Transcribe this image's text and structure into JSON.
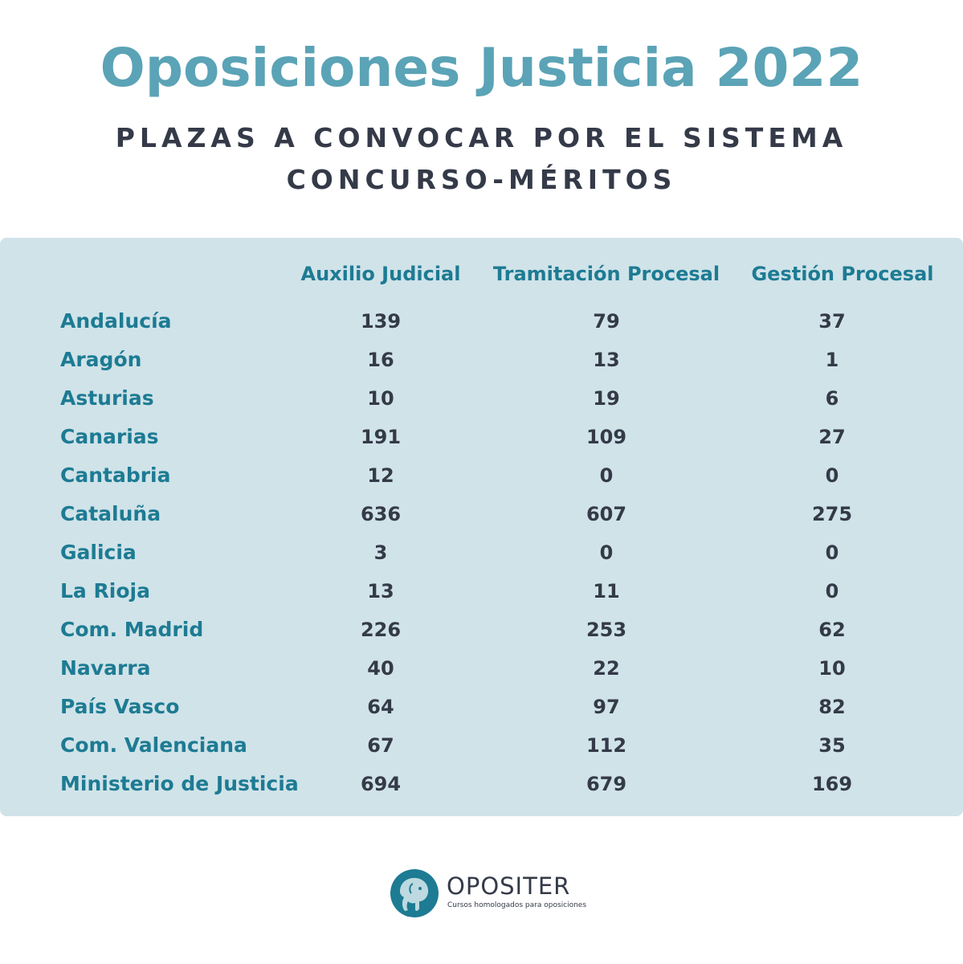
{
  "header": {
    "title": "Oposiciones Justicia 2022",
    "subtitle_line1": "PLAZAS A CONVOCAR POR EL SISTEMA",
    "subtitle_line2": "CONCURSO-MÉRITOS"
  },
  "table": {
    "columns": [
      "Auxilio Judicial",
      "Tramitación Procesal",
      "Gestión Procesal"
    ],
    "rows": [
      {
        "region": "Andalucía",
        "values": [
          "139",
          "79",
          "37"
        ]
      },
      {
        "region": "Aragón",
        "values": [
          "16",
          "13",
          "1"
        ]
      },
      {
        "region": "Asturias",
        "values": [
          "10",
          "19",
          "6"
        ]
      },
      {
        "region": "Canarias",
        "values": [
          "191",
          "109",
          "27"
        ]
      },
      {
        "region": "Cantabria",
        "values": [
          "12",
          "0",
          "0"
        ]
      },
      {
        "region": "Cataluña",
        "values": [
          "636",
          "607",
          "275"
        ]
      },
      {
        "region": "Galicia",
        "values": [
          "3",
          "0",
          "0"
        ]
      },
      {
        "region": "La Rioja",
        "values": [
          "13",
          "11",
          "0"
        ]
      },
      {
        "region": "Com. Madrid",
        "values": [
          "226",
          "253",
          "62"
        ]
      },
      {
        "region": "Navarra",
        "values": [
          "40",
          "22",
          "10"
        ]
      },
      {
        "region": "País Vasco",
        "values": [
          "64",
          "97",
          "82"
        ]
      },
      {
        "region": "Com. Valenciana",
        "values": [
          "67",
          "112",
          "35"
        ]
      },
      {
        "region": "Ministerio de Justicia",
        "values": [
          "694",
          "679",
          "169"
        ]
      }
    ]
  },
  "footer": {
    "brand": "OPOSITER",
    "tagline": "Cursos homologados para oposiciones",
    "logo_icon": "elephant-logo-icon"
  },
  "colors": {
    "title": "#5ba3b6",
    "text_dark": "#343a48",
    "accent": "#1d7b93",
    "panel": "#d0e3e9"
  }
}
